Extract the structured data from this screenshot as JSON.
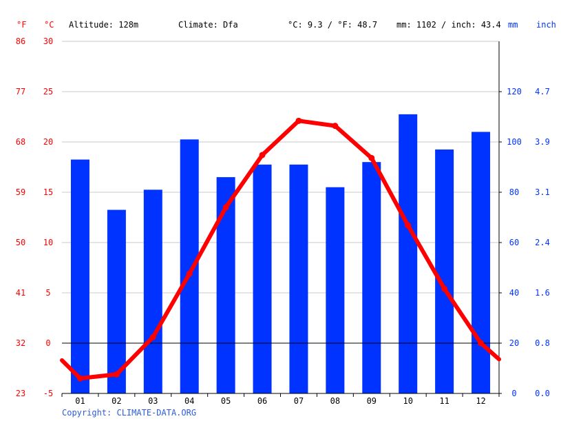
{
  "header": {
    "altitude": "Altitude: 128m",
    "climate": "Climate: Dfa",
    "temp_avg": "°C: 9.3 / °F: 48.7",
    "precip_total": "mm: 1102 / inch: 43.4"
  },
  "units": {
    "fahrenheit": "°F",
    "celsius": "°C",
    "mm": "mm",
    "inch": "inch"
  },
  "footer": {
    "copyright": "Copyright: CLIMATE-DATA.ORG"
  },
  "colors": {
    "temperature": "#ff0000",
    "precipitation": "#0033ff",
    "precip_label": "#0033ff",
    "temp_label": "#ff0000",
    "grid": "#c8c8c8",
    "zero_line": "#000000"
  },
  "chart_data": {
    "type": "bar+line",
    "categories": [
      "01",
      "02",
      "03",
      "04",
      "05",
      "06",
      "07",
      "08",
      "09",
      "10",
      "11",
      "12"
    ],
    "series": [
      {
        "kind": "bar",
        "axis": "precipitation",
        "values": [
          93,
          73,
          81,
          101,
          86,
          91,
          91,
          82,
          92,
          111,
          97,
          104
        ]
      },
      {
        "kind": "line",
        "axis": "temperature",
        "values": [
          -3.5,
          -3.1,
          0.6,
          6.9,
          13.5,
          18.7,
          22.1,
          21.6,
          18.4,
          11.7,
          5.4,
          0.0
        ],
        "edge_left": -1.7,
        "edge_right": -1.6
      }
    ],
    "temp_axis_celsius": {
      "range": [
        -5,
        30
      ],
      "ticks": [
        "30",
        "25",
        "20",
        "15",
        "10",
        "5",
        "0",
        "-5"
      ]
    },
    "temp_axis_fahrenheit": {
      "ticks": [
        "86",
        "77",
        "68",
        "59",
        "50",
        "41",
        "32",
        "23"
      ]
    },
    "precip_axis_mm": {
      "range": [
        0,
        140
      ],
      "ticks": [
        "120",
        "100",
        "80",
        "60",
        "40",
        "20",
        "0"
      ]
    },
    "precip_axis_inch": {
      "ticks": [
        "4.7",
        "3.9",
        "3.1",
        "2.4",
        "1.6",
        "0.8",
        "0.0"
      ]
    },
    "grid": true
  }
}
